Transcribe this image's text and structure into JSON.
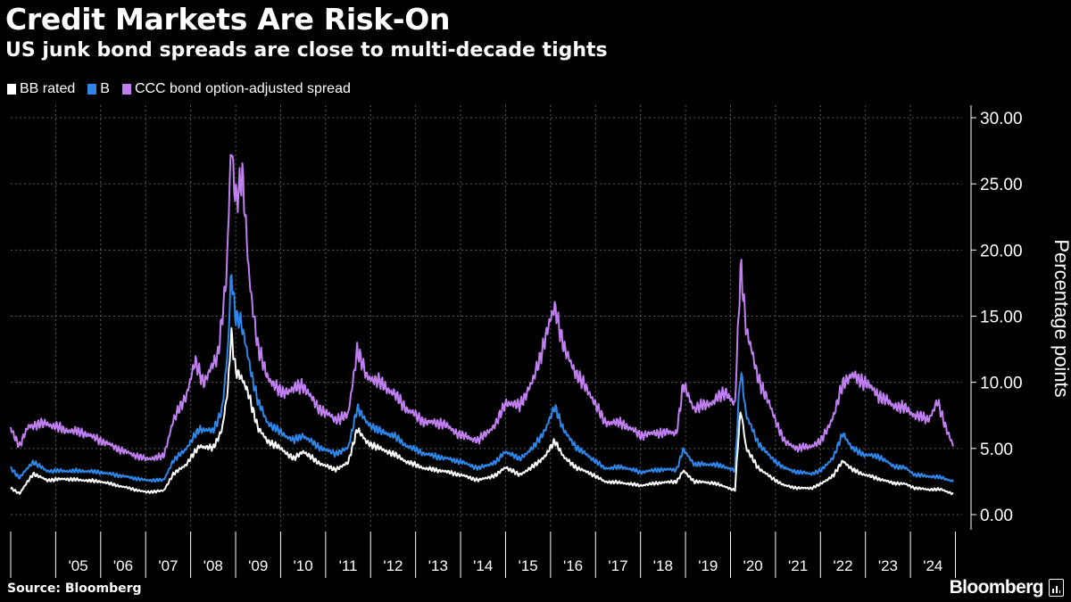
{
  "header": {
    "title": "Credit Markets Are Risk-On",
    "subtitle": "US junk bond spreads are close to multi-decade tights"
  },
  "legend": [
    {
      "label": "BB rated",
      "color": "#ffffff"
    },
    {
      "label": "B",
      "color": "#2f86e8"
    },
    {
      "label": "CCC bond option-adjusted spread",
      "color": "#c07ff0"
    }
  ],
  "footer": {
    "source": "Source: Bloomberg",
    "brand": "Bloomberg"
  },
  "colors": {
    "background": "#000000",
    "text": "#ffffff",
    "grid": "#555555",
    "bb": "#ffffff",
    "b": "#2f86e8",
    "ccc": "#c07ff0"
  },
  "chart_data": {
    "type": "line",
    "title": "Credit Markets Are Risk-On",
    "subtitle": "US junk bond spreads are close to multi-decade tights",
    "ylabel": "Percentage points",
    "xlabel": "",
    "ylim": [
      0,
      30
    ],
    "yticks": [
      "0.00",
      "5.00",
      "10.00",
      "15.00",
      "20.00",
      "25.00",
      "30.00"
    ],
    "xlim": [
      2004.0,
      2024.95
    ],
    "year_labels": [
      "'05",
      "'06",
      "'07",
      "'08",
      "'09",
      "'10",
      "'11",
      "'12",
      "'13",
      "'14",
      "'15",
      "'16",
      "'17",
      "'18",
      "'19",
      "'20",
      "'21",
      "'22",
      "'23",
      "'24"
    ],
    "grid": true,
    "legend_position": "top-left",
    "series": [
      {
        "name": "BB rated",
        "color": "#ffffff",
        "points": [
          [
            2004.0,
            2.0
          ],
          [
            2004.2,
            1.6
          ],
          [
            2004.5,
            3.1
          ],
          [
            2004.8,
            2.6
          ],
          [
            2005.2,
            2.7
          ],
          [
            2005.6,
            2.6
          ],
          [
            2006.0,
            2.5
          ],
          [
            2006.5,
            2.1
          ],
          [
            2007.0,
            1.7
          ],
          [
            2007.4,
            1.8
          ],
          [
            2007.6,
            3.0
          ],
          [
            2007.9,
            3.8
          ],
          [
            2008.2,
            5.2
          ],
          [
            2008.5,
            5.0
          ],
          [
            2008.7,
            6.5
          ],
          [
            2008.83,
            9.5
          ],
          [
            2008.9,
            13.7
          ],
          [
            2009.0,
            11.0
          ],
          [
            2009.1,
            10.5
          ],
          [
            2009.3,
            9.0
          ],
          [
            2009.5,
            6.5
          ],
          [
            2009.7,
            5.6
          ],
          [
            2010.0,
            5.0
          ],
          [
            2010.3,
            4.2
          ],
          [
            2010.5,
            4.8
          ],
          [
            2010.8,
            4.0
          ],
          [
            2011.2,
            3.4
          ],
          [
            2011.5,
            3.9
          ],
          [
            2011.7,
            6.5
          ],
          [
            2011.9,
            5.5
          ],
          [
            2012.2,
            5.0
          ],
          [
            2012.5,
            4.6
          ],
          [
            2012.8,
            4.0
          ],
          [
            2013.2,
            3.5
          ],
          [
            2013.6,
            3.3
          ],
          [
            2014.0,
            3.0
          ],
          [
            2014.4,
            2.6
          ],
          [
            2014.8,
            3.0
          ],
          [
            2015.0,
            3.6
          ],
          [
            2015.3,
            3.0
          ],
          [
            2015.6,
            3.6
          ],
          [
            2015.9,
            4.5
          ],
          [
            2016.1,
            5.6
          ],
          [
            2016.3,
            4.3
          ],
          [
            2016.6,
            3.5
          ],
          [
            2016.9,
            3.1
          ],
          [
            2017.2,
            2.5
          ],
          [
            2017.6,
            2.4
          ],
          [
            2018.0,
            2.2
          ],
          [
            2018.4,
            2.4
          ],
          [
            2018.8,
            2.5
          ],
          [
            2018.95,
            3.3
          ],
          [
            2019.2,
            2.5
          ],
          [
            2019.6,
            2.4
          ],
          [
            2019.9,
            2.1
          ],
          [
            2020.1,
            1.8
          ],
          [
            2020.18,
            6.0
          ],
          [
            2020.23,
            8.0
          ],
          [
            2020.35,
            5.0
          ],
          [
            2020.6,
            3.6
          ],
          [
            2020.9,
            2.8
          ],
          [
            2021.2,
            2.2
          ],
          [
            2021.5,
            2.0
          ],
          [
            2021.8,
            2.0
          ],
          [
            2022.0,
            2.3
          ],
          [
            2022.3,
            3.0
          ],
          [
            2022.5,
            4.1
          ],
          [
            2022.7,
            3.4
          ],
          [
            2023.0,
            3.0
          ],
          [
            2023.3,
            2.7
          ],
          [
            2023.6,
            2.4
          ],
          [
            2023.9,
            2.3
          ],
          [
            2024.1,
            2.0
          ],
          [
            2024.4,
            1.9
          ],
          [
            2024.7,
            1.9
          ],
          [
            2024.95,
            1.55
          ]
        ]
      },
      {
        "name": "B",
        "color": "#2f86e8",
        "points": [
          [
            2004.0,
            3.5
          ],
          [
            2004.2,
            2.8
          ],
          [
            2004.5,
            4.0
          ],
          [
            2004.8,
            3.3
          ],
          [
            2005.2,
            3.3
          ],
          [
            2005.6,
            3.3
          ],
          [
            2006.0,
            3.2
          ],
          [
            2006.5,
            2.9
          ],
          [
            2007.0,
            2.6
          ],
          [
            2007.4,
            2.6
          ],
          [
            2007.6,
            4.0
          ],
          [
            2007.9,
            5.0
          ],
          [
            2008.2,
            6.5
          ],
          [
            2008.5,
            6.3
          ],
          [
            2008.7,
            8.0
          ],
          [
            2008.83,
            12.5
          ],
          [
            2008.9,
            18.3
          ],
          [
            2009.0,
            15.0
          ],
          [
            2009.1,
            14.8
          ],
          [
            2009.3,
            11.5
          ],
          [
            2009.5,
            8.5
          ],
          [
            2009.7,
            7.0
          ],
          [
            2010.0,
            6.2
          ],
          [
            2010.3,
            5.6
          ],
          [
            2010.5,
            6.0
          ],
          [
            2010.8,
            5.2
          ],
          [
            2011.2,
            4.6
          ],
          [
            2011.5,
            5.0
          ],
          [
            2011.7,
            8.1
          ],
          [
            2011.9,
            7.0
          ],
          [
            2012.2,
            6.3
          ],
          [
            2012.5,
            6.0
          ],
          [
            2012.8,
            5.2
          ],
          [
            2013.2,
            4.6
          ],
          [
            2013.6,
            4.3
          ],
          [
            2014.0,
            4.0
          ],
          [
            2014.4,
            3.5
          ],
          [
            2014.8,
            4.0
          ],
          [
            2015.0,
            4.8
          ],
          [
            2015.3,
            4.2
          ],
          [
            2015.6,
            5.0
          ],
          [
            2015.9,
            6.5
          ],
          [
            2016.1,
            8.2
          ],
          [
            2016.3,
            6.3
          ],
          [
            2016.6,
            5.0
          ],
          [
            2016.9,
            4.3
          ],
          [
            2017.2,
            3.5
          ],
          [
            2017.6,
            3.6
          ],
          [
            2018.0,
            3.2
          ],
          [
            2018.4,
            3.4
          ],
          [
            2018.8,
            3.4
          ],
          [
            2018.95,
            4.9
          ],
          [
            2019.2,
            3.8
          ],
          [
            2019.6,
            3.8
          ],
          [
            2019.9,
            3.6
          ],
          [
            2020.1,
            3.3
          ],
          [
            2020.18,
            8.5
          ],
          [
            2020.23,
            11.0
          ],
          [
            2020.35,
            7.5
          ],
          [
            2020.6,
            5.5
          ],
          [
            2020.9,
            4.3
          ],
          [
            2021.2,
            3.5
          ],
          [
            2021.5,
            3.2
          ],
          [
            2021.8,
            3.1
          ],
          [
            2022.0,
            3.3
          ],
          [
            2022.3,
            4.4
          ],
          [
            2022.5,
            6.2
          ],
          [
            2022.7,
            5.0
          ],
          [
            2023.0,
            4.5
          ],
          [
            2023.3,
            4.4
          ],
          [
            2023.6,
            3.7
          ],
          [
            2023.9,
            3.5
          ],
          [
            2024.1,
            3.0
          ],
          [
            2024.4,
            2.9
          ],
          [
            2024.7,
            2.8
          ],
          [
            2024.95,
            2.5
          ]
        ]
      },
      {
        "name": "CCC bond option-adjusted spread",
        "color": "#c07ff0",
        "points": [
          [
            2004.0,
            6.5
          ],
          [
            2004.2,
            5.2
          ],
          [
            2004.4,
            6.7
          ],
          [
            2004.8,
            6.9
          ],
          [
            2005.2,
            6.4
          ],
          [
            2005.6,
            6.2
          ],
          [
            2006.0,
            5.6
          ],
          [
            2006.5,
            4.8
          ],
          [
            2007.0,
            4.2
          ],
          [
            2007.4,
            4.4
          ],
          [
            2007.6,
            7.0
          ],
          [
            2007.9,
            9.0
          ],
          [
            2008.1,
            11.5
          ],
          [
            2008.3,
            10.0
          ],
          [
            2008.6,
            12.0
          ],
          [
            2008.8,
            18.0
          ],
          [
            2008.9,
            28.0
          ],
          [
            2009.0,
            24.0
          ],
          [
            2009.15,
            25.5
          ],
          [
            2009.3,
            18.0
          ],
          [
            2009.5,
            12.5
          ],
          [
            2009.7,
            10.5
          ],
          [
            2010.0,
            9.2
          ],
          [
            2010.3,
            9.5
          ],
          [
            2010.5,
            9.8
          ],
          [
            2010.8,
            8.2
          ],
          [
            2011.2,
            7.2
          ],
          [
            2011.5,
            7.5
          ],
          [
            2011.7,
            12.5
          ],
          [
            2011.9,
            10.5
          ],
          [
            2012.2,
            10.0
          ],
          [
            2012.5,
            9.2
          ],
          [
            2012.8,
            8.0
          ],
          [
            2013.2,
            7.0
          ],
          [
            2013.6,
            6.9
          ],
          [
            2014.0,
            6.0
          ],
          [
            2014.4,
            5.6
          ],
          [
            2014.8,
            6.9
          ],
          [
            2015.0,
            8.5
          ],
          [
            2015.3,
            8.2
          ],
          [
            2015.6,
            10.0
          ],
          [
            2015.9,
            13.5
          ],
          [
            2016.1,
            15.8
          ],
          [
            2016.3,
            12.5
          ],
          [
            2016.6,
            10.5
          ],
          [
            2016.9,
            9.0
          ],
          [
            2017.2,
            7.0
          ],
          [
            2017.6,
            6.9
          ],
          [
            2018.0,
            6.0
          ],
          [
            2018.4,
            6.2
          ],
          [
            2018.8,
            6.2
          ],
          [
            2018.95,
            9.8
          ],
          [
            2019.2,
            8.0
          ],
          [
            2019.6,
            8.5
          ],
          [
            2019.9,
            9.3
          ],
          [
            2020.1,
            8.2
          ],
          [
            2020.18,
            15.0
          ],
          [
            2020.23,
            19.0
          ],
          [
            2020.35,
            14.0
          ],
          [
            2020.6,
            10.5
          ],
          [
            2020.9,
            8.0
          ],
          [
            2021.2,
            5.5
          ],
          [
            2021.5,
            5.0
          ],
          [
            2021.8,
            5.2
          ],
          [
            2022.0,
            5.5
          ],
          [
            2022.3,
            7.5
          ],
          [
            2022.5,
            10.0
          ],
          [
            2022.7,
            10.5
          ],
          [
            2023.0,
            10.0
          ],
          [
            2023.3,
            9.0
          ],
          [
            2023.6,
            8.3
          ],
          [
            2023.9,
            8.0
          ],
          [
            2024.1,
            7.5
          ],
          [
            2024.4,
            7.2
          ],
          [
            2024.6,
            8.5
          ],
          [
            2024.8,
            6.5
          ],
          [
            2024.95,
            5.2
          ]
        ]
      }
    ]
  }
}
